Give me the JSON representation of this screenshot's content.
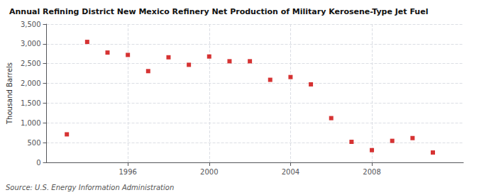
{
  "chart_data": {
    "type": "scatter",
    "title": "Annual Refining District New Mexico Refinery Net Production of Military Kerosene-Type Jet Fuel",
    "ylabel": "Thousand Barrels",
    "annotation": "Source: U.S. Energy Information Administration",
    "x": [
      1993,
      1994,
      1995,
      1996,
      1997,
      1998,
      1999,
      2000,
      2001,
      2002,
      2003,
      2004,
      2005,
      2006,
      2007,
      2008,
      2009,
      2010,
      2011
    ],
    "values": [
      710,
      3050,
      2780,
      2720,
      2310,
      2660,
      2470,
      2680,
      2560,
      2560,
      2090,
      2160,
      1975,
      1120,
      520,
      310,
      545,
      615,
      250
    ],
    "color": "#cc0000",
    "marker": "square",
    "xlim": [
      1992.0,
      2012.5
    ],
    "xticks": [
      1996,
      2000,
      2004,
      2008
    ],
    "ylim": [
      0,
      3500
    ],
    "yticks": [
      0,
      500,
      {
        "value": 1000,
        "label": "1,000"
      },
      {
        "value": 1500,
        "label": "1,500"
      },
      {
        "value": 2000,
        "label": "2,000"
      },
      {
        "value": 2500,
        "label": "2,500"
      },
      {
        "value": 3000,
        "label": "3,000"
      },
      {
        "value": 3500,
        "label": "3,500"
      }
    ],
    "grid": true
  }
}
